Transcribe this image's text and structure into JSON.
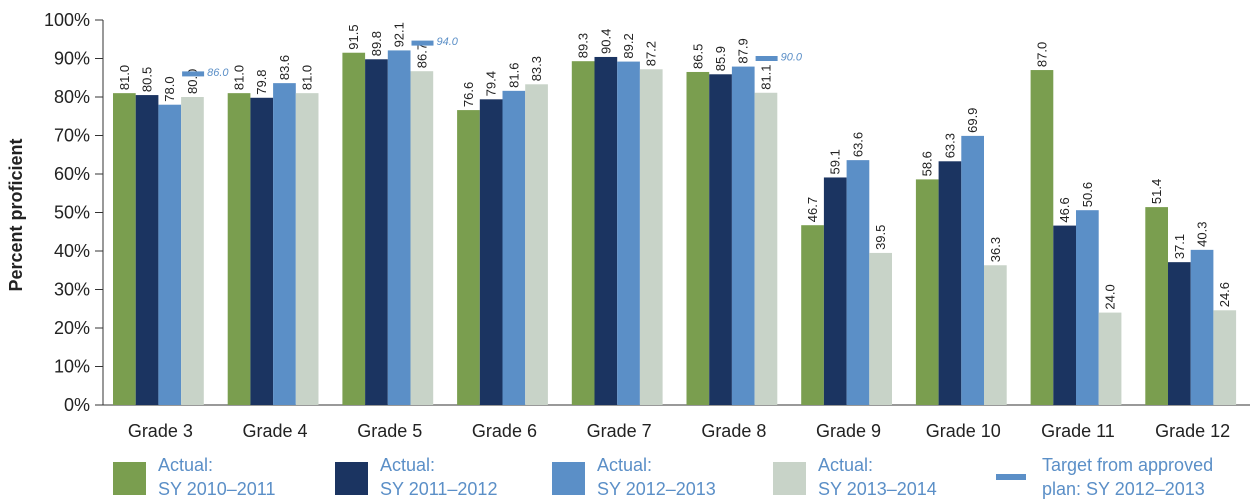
{
  "chart_data": {
    "type": "bar",
    "ylabel": "Percent proficient",
    "ylim": [
      0,
      100
    ],
    "yticks": [
      "0%",
      "10%",
      "20%",
      "30%",
      "40%",
      "50%",
      "60%",
      "70%",
      "80%",
      "90%",
      "100%"
    ],
    "categories": [
      "Grade 3",
      "Grade 4",
      "Grade 5",
      "Grade 6",
      "Grade 7",
      "Grade 8",
      "Grade 9",
      "Grade 10",
      "Grade 11",
      "Grade 12"
    ],
    "series": [
      {
        "name": "Actual: SY 2010–2011",
        "legend_lines": [
          "Actual:",
          "SY 2010–2011"
        ],
        "color": "#7a9e4f",
        "values": [
          81.0,
          81.0,
          91.5,
          76.6,
          89.3,
          86.5,
          46.7,
          58.6,
          87.0,
          51.4
        ]
      },
      {
        "name": "Actual: SY 2011–2012",
        "legend_lines": [
          "Actual:",
          "SY 2011–2012"
        ],
        "color": "#1b3461",
        "values": [
          80.5,
          79.8,
          89.8,
          79.4,
          90.4,
          85.9,
          59.1,
          63.3,
          46.6,
          37.1
        ]
      },
      {
        "name": "Actual: SY 2012–2013",
        "legend_lines": [
          "Actual:",
          "SY 2012–2013"
        ],
        "color": "#5b8fc7",
        "values": [
          78.0,
          83.6,
          92.1,
          81.6,
          89.2,
          87.9,
          63.6,
          69.9,
          50.6,
          40.3
        ]
      },
      {
        "name": "Actual: SY 2013–2014",
        "legend_lines": [
          "Actual:",
          "SY 2013–2014"
        ],
        "color": "#c8d3c8",
        "values": [
          80.0,
          81.0,
          86.7,
          83.3,
          87.2,
          81.1,
          39.5,
          36.3,
          24.0,
          24.6
        ]
      }
    ],
    "targets": {
      "name": "Target from approved plan: SY 2012–2013",
      "legend_lines": [
        "Target from approved",
        "plan: SY 2012–2013"
      ],
      "color": "#5b8fc7",
      "values": [
        86.0,
        null,
        94.0,
        null,
        null,
        90.0,
        null,
        null,
        null,
        null
      ],
      "labels": [
        "86.0",
        null,
        "94.0",
        null,
        null,
        "90.0",
        null,
        null,
        null,
        null
      ]
    },
    "legend_position": "bottom",
    "grid": false
  }
}
